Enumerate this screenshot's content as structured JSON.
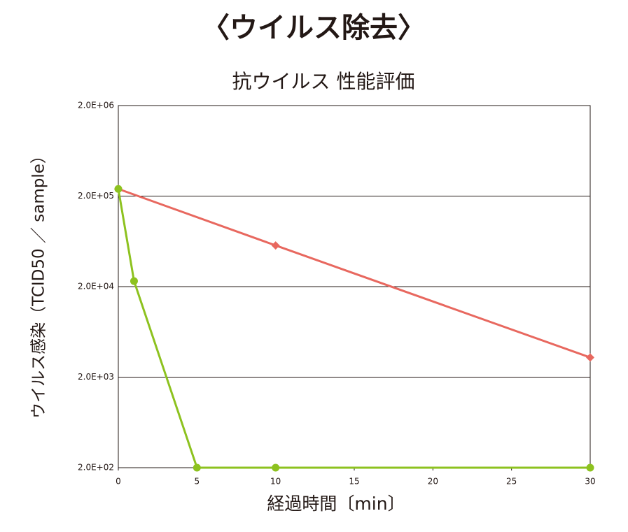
{
  "chart_data": {
    "type": "line",
    "title": "〈ウイルス除去〉",
    "subtitle": "抗ウイルス 性能評価",
    "x_label": "経過時間〔min〕",
    "y_label": "ウイルス感染（TCID50 ／ sample）",
    "y_scale": "log",
    "grid": true,
    "xlim": [
      0,
      30
    ],
    "xticks": [
      0,
      5,
      10,
      15,
      20,
      25,
      30
    ],
    "ylim": [
      200,
      2000000
    ],
    "yticks": [
      {
        "value": 200,
        "label": "2.0E+02"
      },
      {
        "value": 2000,
        "label": "2.0E+03"
      },
      {
        "value": 20000,
        "label": "2.0E+04"
      },
      {
        "value": 200000,
        "label": "2.0E+05"
      },
      {
        "value": 2000000,
        "label": "2.0E+06"
      }
    ],
    "series": [
      {
        "color": "#e8685f",
        "marker": "diamond",
        "x": [
          0,
          10,
          30
        ],
        "values": [
          240000,
          57000,
          3300
        ]
      },
      {
        "color": "#8dc21f",
        "marker": "circle",
        "x": [
          0,
          1,
          5,
          10,
          30
        ],
        "values": [
          240000,
          23000,
          200,
          200,
          200
        ]
      }
    ]
  }
}
